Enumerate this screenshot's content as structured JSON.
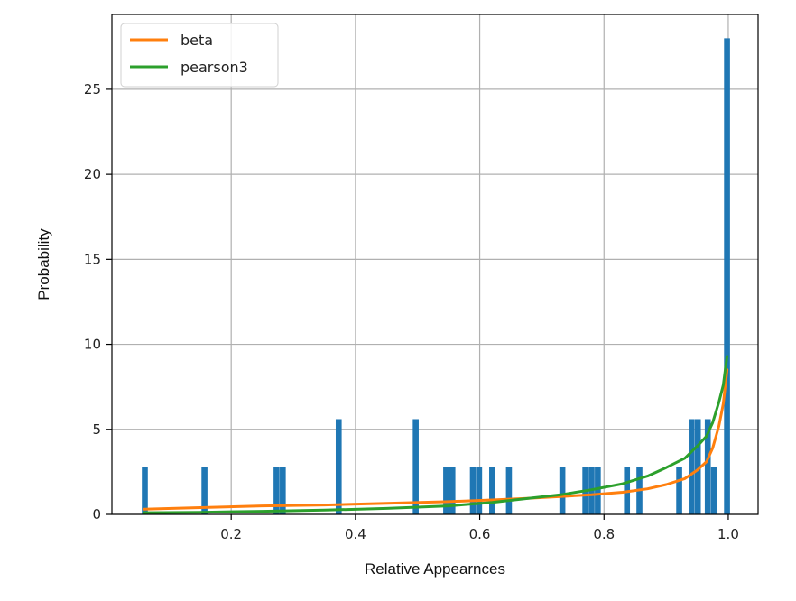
{
  "chart_data": {
    "type": "bar",
    "xlabel": "Relative Appearnces",
    "ylabel": "Probability",
    "xlim": [
      0.008,
      1.048
    ],
    "ylim": [
      0,
      29.4
    ],
    "grid": true,
    "legend_position": "top-left",
    "x_ticks": [
      0.2,
      0.4,
      0.6,
      0.8,
      1.0
    ],
    "x_tick_labels": [
      "0.2",
      "0.4",
      "0.6",
      "0.8",
      "1.0"
    ],
    "y_ticks": [
      0,
      5,
      10,
      15,
      20,
      25
    ],
    "y_tick_labels": [
      "0",
      "5",
      "10",
      "15",
      "20",
      "25"
    ],
    "histogram": {
      "color": "#1f77b4",
      "bin_width": 0.0096,
      "bins": [
        {
          "x": 0.061,
          "height": 2.8
        },
        {
          "x": 0.157,
          "height": 2.8
        },
        {
          "x": 0.273,
          "height": 2.8
        },
        {
          "x": 0.283,
          "height": 2.8
        },
        {
          "x": 0.373,
          "height": 5.6
        },
        {
          "x": 0.497,
          "height": 5.6
        },
        {
          "x": 0.546,
          "height": 2.8
        },
        {
          "x": 0.556,
          "height": 2.8
        },
        {
          "x": 0.589,
          "height": 2.8
        },
        {
          "x": 0.599,
          "height": 2.8
        },
        {
          "x": 0.62,
          "height": 2.8
        },
        {
          "x": 0.647,
          "height": 2.8
        },
        {
          "x": 0.733,
          "height": 2.8
        },
        {
          "x": 0.77,
          "height": 2.8
        },
        {
          "x": 0.78,
          "height": 2.8
        },
        {
          "x": 0.79,
          "height": 2.8
        },
        {
          "x": 0.837,
          "height": 2.8
        },
        {
          "x": 0.857,
          "height": 2.8
        },
        {
          "x": 0.921,
          "height": 2.8
        },
        {
          "x": 0.941,
          "height": 5.6
        },
        {
          "x": 0.951,
          "height": 5.6
        },
        {
          "x": 0.967,
          "height": 5.6
        },
        {
          "x": 0.977,
          "height": 2.8
        },
        {
          "x": 0.998,
          "height": 28.0
        }
      ]
    },
    "series": [
      {
        "name": "beta",
        "color": "#ff7f0e",
        "x": [
          0.06,
          0.15,
          0.25,
          0.35,
          0.45,
          0.55,
          0.62,
          0.68,
          0.73,
          0.78,
          0.83,
          0.87,
          0.9,
          0.93,
          0.95,
          0.965,
          0.975,
          0.985,
          0.992,
          0.998
        ],
        "y": [
          0.3,
          0.4,
          0.5,
          0.55,
          0.65,
          0.75,
          0.85,
          0.95,
          1.05,
          1.15,
          1.3,
          1.5,
          1.75,
          2.1,
          2.6,
          3.1,
          3.9,
          5.2,
          6.5,
          8.5
        ]
      },
      {
        "name": "pearson3",
        "color": "#2ca02c",
        "x": [
          0.06,
          0.15,
          0.25,
          0.35,
          0.45,
          0.55,
          0.62,
          0.68,
          0.73,
          0.78,
          0.83,
          0.87,
          0.9,
          0.93,
          0.95,
          0.965,
          0.975,
          0.985,
          0.992,
          0.998
        ],
        "y": [
          0.1,
          0.12,
          0.18,
          0.25,
          0.35,
          0.5,
          0.7,
          0.95,
          1.15,
          1.45,
          1.8,
          2.25,
          2.75,
          3.3,
          4.0,
          4.6,
          5.4,
          6.6,
          7.6,
          9.3
        ]
      }
    ]
  }
}
